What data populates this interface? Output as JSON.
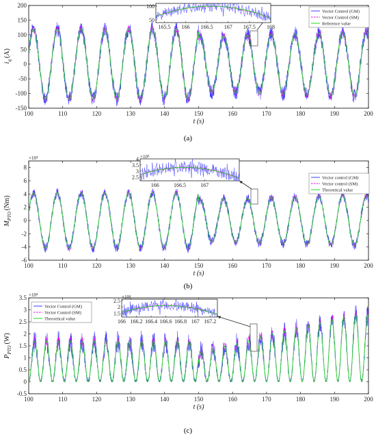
{
  "chart_data": [
    {
      "type": "line",
      "caption": "(a)",
      "ylabel_main": "i",
      "ylabel_sub": "q",
      "ylabel_unit": "(A)",
      "xlabel": "t (s)",
      "xlim": [
        100,
        200
      ],
      "ylim": [
        -150,
        200
      ],
      "xticks": [
        "100",
        "110",
        "120",
        "130",
        "140",
        "150",
        "160",
        "170",
        "180",
        "190",
        "200"
      ],
      "yticks": [
        "-150",
        "-100",
        "-50",
        "0",
        "50",
        "100",
        "150",
        "200"
      ],
      "exponent": "",
      "legend_position": "top-right",
      "series": [
        {
          "name": "Vector Control (GM)",
          "style": "solid",
          "color": "#3d3dff"
        },
        {
          "name": "Vector Control (SM)",
          "style": "dashed",
          "color": "#e000e0"
        },
        {
          "name": "Reference value",
          "style": "solid",
          "color": "#1fd81f"
        }
      ],
      "signal": {
        "frequency_hz": 0.1429,
        "amplitude_before_150": 120,
        "amplitude_after_150": 95,
        "amplitude_end": 110,
        "noise": 25
      },
      "inset": {
        "xlim": [
          165.3,
          168
        ],
        "ylim": [
          40,
          110
        ],
        "xticks": [
          "165.5",
          "166",
          "166.5",
          "167",
          "167.5",
          "168"
        ],
        "yticks": [
          "50",
          "100"
        ],
        "exponent": "",
        "peak": 100,
        "peak_x": 166.6
      }
    },
    {
      "type": "line",
      "caption": "(b)",
      "ylabel_main": "M",
      "ylabel_sub": "PTO",
      "ylabel_unit": "(Nm)",
      "xlabel": "t (s)",
      "xlim": [
        100,
        200
      ],
      "ylim": [
        -6,
        9
      ],
      "xticks": [
        "100",
        "110",
        "120",
        "130",
        "140",
        "150",
        "160",
        "170",
        "180",
        "190",
        "200"
      ],
      "yticks": [
        "-6",
        "-4",
        "-2",
        "0",
        "2",
        "4",
        "6",
        "8"
      ],
      "exponent": "×10⁴",
      "legend_position": "right",
      "series": [
        {
          "name": "Vector control (GM)",
          "style": "solid",
          "color": "#3d3dff"
        },
        {
          "name": "Vector control (SM)",
          "style": "dashed",
          "color": "#e000e0"
        },
        {
          "name": "Theoretical value",
          "style": "solid",
          "color": "#1fd81f"
        }
      ],
      "signal": {
        "frequency_hz": 0.1429,
        "amplitude_before_150": 4.2,
        "amplitude_after_150": 3.2,
        "amplitude_end": 3.8,
        "noise": 0.7
      },
      "inset": {
        "xlim": [
          165.7,
          167.7
        ],
        "ylim": [
          2.2,
          4
        ],
        "xticks": [
          "166",
          "166.5",
          "167"
        ],
        "yticks": [
          "2.5",
          "3",
          "3.5",
          "4"
        ],
        "exponent": "×10⁴",
        "peak": 3.3,
        "peak_x": 166.6
      }
    },
    {
      "type": "line",
      "caption": "(c)",
      "ylabel_main": "P",
      "ylabel_sub": "PTO",
      "ylabel_unit": "(W)",
      "xlabel": "t (s)",
      "xlim": [
        100,
        200
      ],
      "ylim": [
        -0.5,
        3.5
      ],
      "xticks": [
        "100",
        "110",
        "120",
        "130",
        "140",
        "150",
        "160",
        "170",
        "180",
        "190",
        "200"
      ],
      "yticks": [
        "-0.5",
        "0",
        "0.5",
        "1",
        "1.5",
        "2",
        "2.5",
        "3",
        "3.5"
      ],
      "exponent": "×10⁴",
      "legend_position": "top-left",
      "series": [
        {
          "name": "Vector Control (GM)",
          "style": "solid",
          "color": "#3d3dff"
        },
        {
          "name": "Vector Control (SM)",
          "style": "dashed",
          "color": "#e000e0"
        },
        {
          "name": "Theoretical value",
          "style": "solid",
          "color": "#1fd81f"
        }
      ],
      "signal": {
        "frequency_hz": 0.2857,
        "amplitude_before_150": 1.7,
        "amplitude_after_150": 1.25,
        "amplitude_end": 2.8,
        "noise": 0.35
      },
      "inset": {
        "xlim": [
          166,
          167.3
        ],
        "ylim": [
          1.2,
          2.6
        ],
        "xticks": [
          "166",
          "166.2",
          "166.4",
          "166.6",
          "166.8",
          "167",
          "167.2"
        ],
        "yticks": [
          "1.5",
          "2",
          "2.5"
        ],
        "exponent": "×10⁴",
        "peak": 2.1,
        "peak_x": 166.6
      }
    }
  ]
}
